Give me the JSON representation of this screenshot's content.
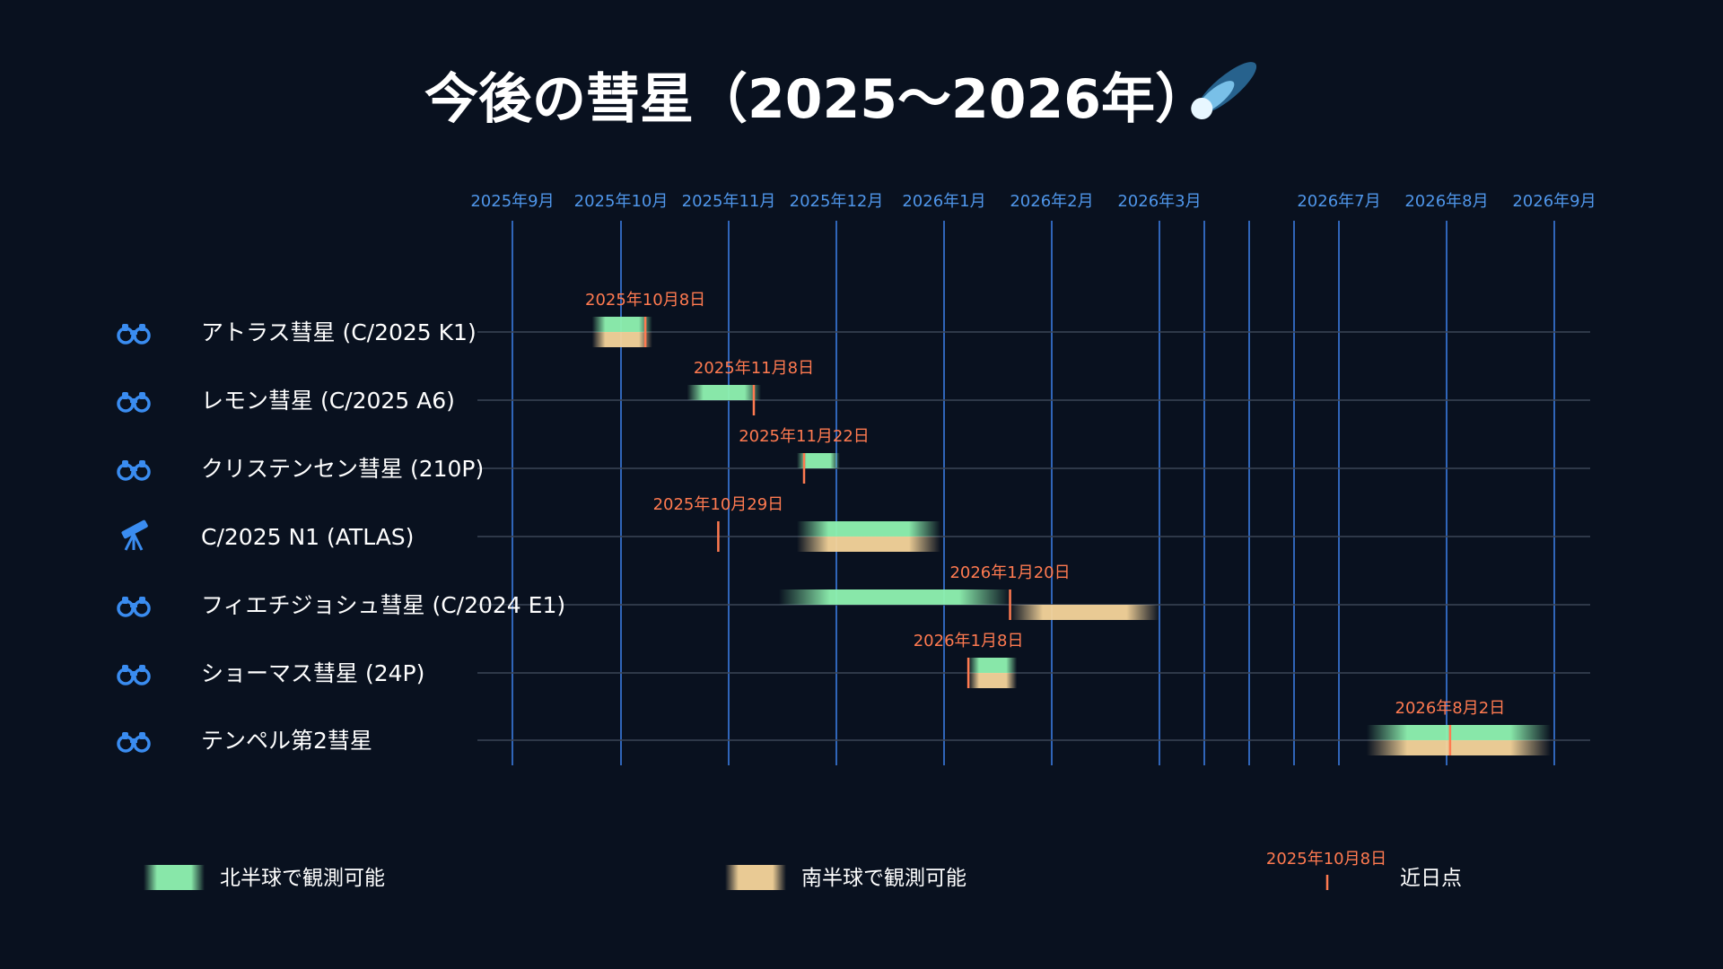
{
  "title": "今後の彗星（2025～2026年）",
  "colors": {
    "background": "#09111f",
    "grid": "#3b7be0",
    "axis_label": "#4f96ea",
    "row_line": "#3a4556",
    "perihelion": "#ff7a50",
    "north": "#8ff2b0",
    "south": "#f5d49a",
    "icon": "#3a8cf0",
    "text": "#ffffff"
  },
  "chart_data": {
    "type": "timeline",
    "title": "今後の彗星（2025～2026年）",
    "x_axis": {
      "tick_labels": [
        "2025年9月",
        "2025年10月",
        "2025年11月",
        "2025年12月",
        "2026年1月",
        "2026年2月",
        "2026年3月",
        "",
        "",
        "",
        "2026年7月",
        "2026年8月",
        "2026年9月"
      ],
      "start": "2025-09-01",
      "end": "2026-09-01"
    },
    "series": [
      {
        "name": "北半球で観測可能",
        "color": "#8ff2b0"
      },
      {
        "name": "南半球で観測可能",
        "color": "#f5d49a"
      }
    ],
    "comets": [
      {
        "name": "アトラス彗星 (C/2025 K1)",
        "icon": "binoculars-icon",
        "perihelion": "2025-10-08",
        "perihelion_label": "2025年10月8日",
        "north": [
          "2025-09-23",
          "2025-10-10"
        ],
        "south": [
          "2025-09-23",
          "2025-10-10"
        ]
      },
      {
        "name": "レモン彗星 (C/2025 A6)",
        "icon": "binoculars-icon",
        "perihelion": "2025-11-08",
        "perihelion_label": "2025年11月8日",
        "north": [
          "2025-10-20",
          "2025-11-10"
        ],
        "south": null
      },
      {
        "name": "クリステンセン彗星 (210P)",
        "icon": "binoculars-icon",
        "perihelion": "2025-11-22",
        "perihelion_label": "2025年11月22日",
        "north": [
          "2025-11-20",
          "2025-12-02"
        ],
        "south": null
      },
      {
        "name": "C/2025 N1 (ATLAS)",
        "icon": "telescope-icon",
        "perihelion": "2025-10-29",
        "perihelion_label": "2025年10月29日",
        "north": [
          "2025-11-20",
          "2025-12-31"
        ],
        "south": [
          "2025-11-20",
          "2025-12-31"
        ]
      },
      {
        "name": "フィエチジョシュ彗星 (C/2024 E1)",
        "icon": "binoculars-icon",
        "perihelion": "2026-01-20",
        "perihelion_label": "2026年1月20日",
        "north": [
          "2025-11-15",
          "2026-01-20"
        ],
        "south": [
          "2026-01-20",
          "2026-03-01"
        ]
      },
      {
        "name": "ショーマス彗星 (24P)",
        "icon": "binoculars-icon",
        "perihelion": "2026-01-08",
        "perihelion_label": "2026年1月8日",
        "north": [
          "2026-01-08",
          "2026-01-22"
        ],
        "south": [
          "2026-01-08",
          "2026-01-22"
        ]
      },
      {
        "name": "テンペル第2彗星",
        "icon": "binoculars-icon",
        "perihelion": "2026-08-02",
        "perihelion_label": "2026年8月2日",
        "north": [
          "2026-07-09",
          "2026-08-31"
        ],
        "south": [
          "2026-07-09",
          "2026-08-31"
        ]
      }
    ],
    "legend": {
      "north_label": "北半球で観測可能",
      "south_label": "南半球で観測可能",
      "perihelion_label": "近日点",
      "perihelion_example": "2025年10月8日"
    },
    "grid": true
  }
}
